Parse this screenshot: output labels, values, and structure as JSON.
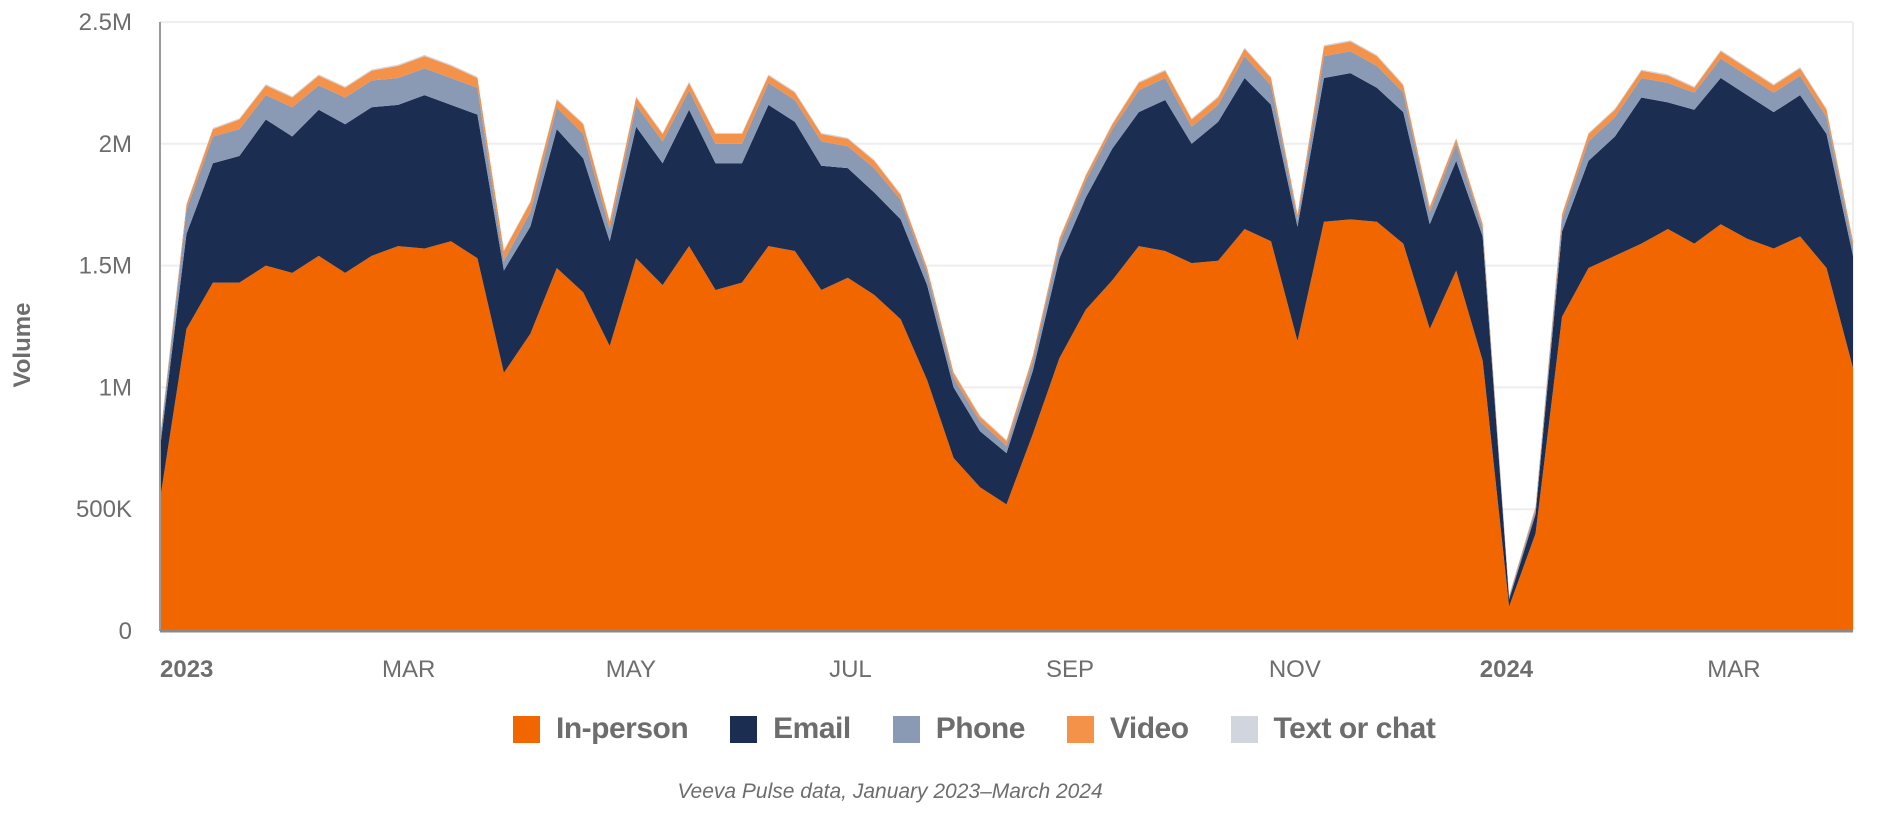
{
  "chart_data": {
    "type": "area",
    "stacked": true,
    "ylabel": "Volume",
    "xlabel": "",
    "ylim": [
      0,
      2500000
    ],
    "yticks": [
      {
        "value": 0,
        "label": "0"
      },
      {
        "value": 500000,
        "label": "500K"
      },
      {
        "value": 1000000,
        "label": "1M"
      },
      {
        "value": 1500000,
        "label": "1.5M"
      },
      {
        "value": 2000000,
        "label": "2M"
      },
      {
        "value": 2500000,
        "label": "2.5M"
      }
    ],
    "xlim": [
      0,
      64
    ],
    "xticks": [
      {
        "week": 0,
        "label": "2023",
        "bold": true
      },
      {
        "week": 9.4,
        "label": "MAR",
        "bold": false
      },
      {
        "week": 17.8,
        "label": "MAY",
        "bold": false
      },
      {
        "week": 26.1,
        "label": "JUL",
        "bold": false
      },
      {
        "week": 34.4,
        "label": "SEP",
        "bold": false
      },
      {
        "week": 42.9,
        "label": "NOV",
        "bold": false
      },
      {
        "week": 50.9,
        "label": "2024",
        "bold": true
      },
      {
        "week": 59.5,
        "label": "MAR",
        "bold": false
      }
    ],
    "grid": true,
    "legend_position": "bottom-center",
    "series": [
      {
        "name": "In-person",
        "color": "#f26600",
        "values": [
          540000,
          1240000,
          1430000,
          1430000,
          1500000,
          1470000,
          1540000,
          1470000,
          1540000,
          1580000,
          1570000,
          1600000,
          1530000,
          1060000,
          1220000,
          1490000,
          1390000,
          1170000,
          1530000,
          1420000,
          1580000,
          1400000,
          1430000,
          1580000,
          1560000,
          1400000,
          1450000,
          1380000,
          1280000,
          1030000,
          710000,
          590000,
          520000,
          810000,
          1120000,
          1320000,
          1440000,
          1580000,
          1560000,
          1510000,
          1520000,
          1650000,
          1600000,
          1190000,
          1680000,
          1690000,
          1680000,
          1590000,
          1240000,
          1480000,
          1110000,
          100000,
          400000,
          1290000,
          1490000,
          1540000,
          1590000,
          1650000,
          1590000,
          1670000,
          1610000,
          1570000,
          1620000,
          1490000,
          1080000
        ]
      },
      {
        "name": "Email",
        "color": "#1c2d52",
        "values": [
          210000,
          390000,
          490000,
          520000,
          600000,
          560000,
          600000,
          610000,
          610000,
          580000,
          630000,
          560000,
          590000,
          420000,
          440000,
          570000,
          550000,
          430000,
          540000,
          500000,
          560000,
          520000,
          490000,
          580000,
          530000,
          510000,
          450000,
          420000,
          410000,
          390000,
          290000,
          230000,
          210000,
          260000,
          410000,
          460000,
          540000,
          550000,
          620000,
          490000,
          570000,
          620000,
          560000,
          470000,
          590000,
          600000,
          550000,
          540000,
          430000,
          450000,
          510000,
          30000,
          80000,
          350000,
          440000,
          490000,
          600000,
          520000,
          550000,
          600000,
          590000,
          560000,
          580000,
          550000,
          460000
        ]
      },
      {
        "name": "Phone",
        "color": "#8a9ab5",
        "values": [
          30000,
          100000,
          110000,
          110000,
          100000,
          120000,
          100000,
          110000,
          110000,
          110000,
          110000,
          110000,
          110000,
          40000,
          60000,
          90000,
          100000,
          50000,
          90000,
          90000,
          80000,
          80000,
          80000,
          90000,
          90000,
          100000,
          90000,
          100000,
          80000,
          50000,
          40000,
          40000,
          30000,
          40000,
          60000,
          70000,
          80000,
          90000,
          90000,
          70000,
          70000,
          90000,
          80000,
          30000,
          90000,
          90000,
          90000,
          80000,
          50000,
          70000,
          30000,
          10000,
          20000,
          50000,
          80000,
          80000,
          80000,
          80000,
          70000,
          80000,
          80000,
          80000,
          80000,
          70000,
          40000
        ]
      },
      {
        "name": "Video",
        "color": "#f5924a",
        "values": [
          10000,
          20000,
          30000,
          40000,
          40000,
          40000,
          40000,
          40000,
          40000,
          50000,
          50000,
          50000,
          40000,
          40000,
          40000,
          30000,
          40000,
          30000,
          30000,
          30000,
          30000,
          40000,
          40000,
          30000,
          30000,
          30000,
          30000,
          30000,
          20000,
          20000,
          20000,
          20000,
          20000,
          20000,
          20000,
          20000,
          20000,
          30000,
          30000,
          30000,
          30000,
          30000,
          30000,
          20000,
          40000,
          40000,
          40000,
          30000,
          20000,
          20000,
          20000,
          5000,
          10000,
          20000,
          30000,
          30000,
          30000,
          30000,
          20000,
          30000,
          30000,
          30000,
          30000,
          30000,
          20000
        ]
      },
      {
        "name": "Text or chat",
        "color": "#d0d5de",
        "values": [
          3000,
          5000,
          5000,
          5000,
          5000,
          5000,
          5000,
          5000,
          5000,
          5000,
          5000,
          5000,
          5000,
          5000,
          5000,
          5000,
          5000,
          5000,
          5000,
          5000,
          5000,
          5000,
          5000,
          5000,
          5000,
          5000,
          5000,
          5000,
          5000,
          5000,
          5000,
          5000,
          5000,
          5000,
          5000,
          5000,
          5000,
          5000,
          5000,
          5000,
          5000,
          5000,
          5000,
          5000,
          5000,
          5000,
          5000,
          5000,
          5000,
          5000,
          5000,
          2000,
          3000,
          5000,
          5000,
          5000,
          5000,
          5000,
          5000,
          5000,
          5000,
          5000,
          5000,
          5000,
          5000
        ]
      }
    ],
    "caption": "Veeva Pulse data, January 2023–March 2024"
  }
}
